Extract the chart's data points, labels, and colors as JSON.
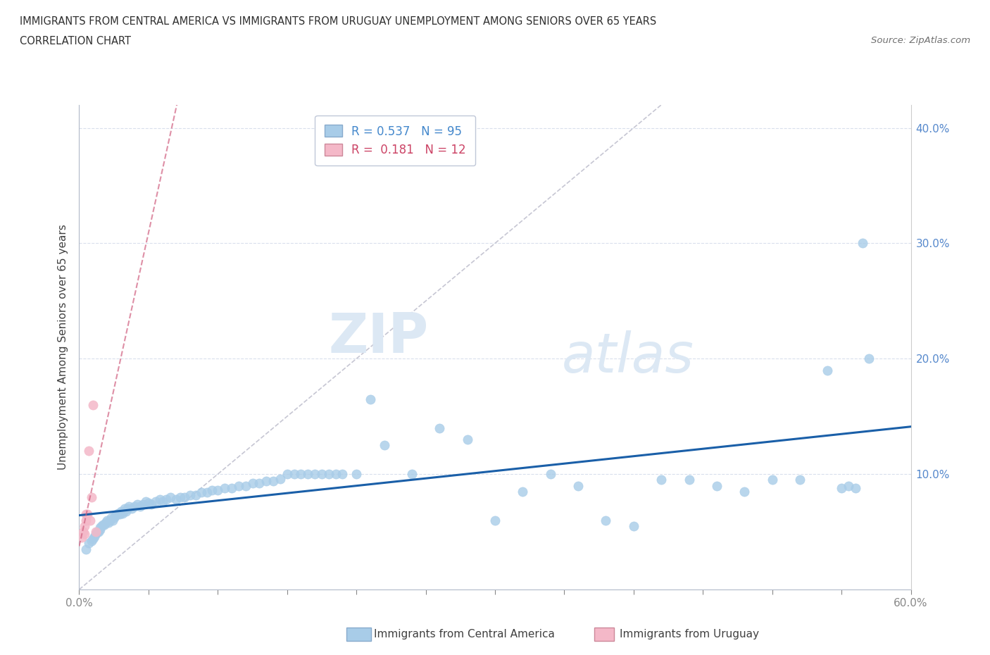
{
  "title_line1": "IMMIGRANTS FROM CENTRAL AMERICA VS IMMIGRANTS FROM URUGUAY UNEMPLOYMENT AMONG SENIORS OVER 65 YEARS",
  "title_line2": "CORRELATION CHART",
  "source": "Source: ZipAtlas.com",
  "ylabel": "Unemployment Among Seniors over 65 years",
  "xlabel_blue": "Immigrants from Central America",
  "xlabel_pink": "Immigrants from Uruguay",
  "R_blue": 0.537,
  "N_blue": 95,
  "R_pink": 0.181,
  "N_pink": 12,
  "xlim": [
    0.0,
    0.6
  ],
  "ylim": [
    0.0,
    0.42
  ],
  "xticks": [
    0.0,
    0.05,
    0.1,
    0.15,
    0.2,
    0.25,
    0.3,
    0.35,
    0.4,
    0.45,
    0.5,
    0.55,
    0.6
  ],
  "xtick_labels": [
    "0.0%",
    "",
    "",
    "",
    "",
    "",
    "",
    "",
    "",
    "",
    "",
    "",
    "60.0%"
  ],
  "yticks": [
    0.1,
    0.2,
    0.3,
    0.4
  ],
  "ytick_labels": [
    "10.0%",
    "20.0%",
    "30.0%",
    "40.0%"
  ],
  "blue_color": "#a8cce8",
  "blue_line_color": "#1a5fa8",
  "pink_color": "#f4b8c8",
  "pink_line_color": "#d06080",
  "watermark_zip": "ZIP",
  "watermark_atlas": "atlas",
  "blue_x": [
    0.005,
    0.007,
    0.009,
    0.01,
    0.011,
    0.012,
    0.013,
    0.014,
    0.015,
    0.015,
    0.016,
    0.017,
    0.018,
    0.019,
    0.02,
    0.021,
    0.022,
    0.023,
    0.024,
    0.025,
    0.026,
    0.027,
    0.028,
    0.029,
    0.03,
    0.031,
    0.032,
    0.033,
    0.034,
    0.035,
    0.036,
    0.038,
    0.04,
    0.042,
    0.044,
    0.046,
    0.048,
    0.05,
    0.052,
    0.055,
    0.058,
    0.06,
    0.063,
    0.066,
    0.07,
    0.073,
    0.076,
    0.08,
    0.084,
    0.088,
    0.092,
    0.096,
    0.1,
    0.105,
    0.11,
    0.115,
    0.12,
    0.125,
    0.13,
    0.135,
    0.14,
    0.145,
    0.15,
    0.155,
    0.16,
    0.165,
    0.17,
    0.175,
    0.18,
    0.185,
    0.19,
    0.2,
    0.21,
    0.22,
    0.24,
    0.26,
    0.28,
    0.3,
    0.32,
    0.34,
    0.36,
    0.38,
    0.4,
    0.42,
    0.44,
    0.46,
    0.48,
    0.5,
    0.52,
    0.54,
    0.55,
    0.555,
    0.56,
    0.565,
    0.57
  ],
  "blue_y": [
    0.035,
    0.04,
    0.042,
    0.044,
    0.046,
    0.048,
    0.05,
    0.05,
    0.052,
    0.054,
    0.055,
    0.056,
    0.056,
    0.058,
    0.06,
    0.058,
    0.06,
    0.062,
    0.06,
    0.062,
    0.064,
    0.065,
    0.066,
    0.065,
    0.068,
    0.066,
    0.068,
    0.07,
    0.068,
    0.07,
    0.072,
    0.07,
    0.072,
    0.074,
    0.072,
    0.074,
    0.076,
    0.075,
    0.074,
    0.076,
    0.078,
    0.076,
    0.078,
    0.08,
    0.078,
    0.08,
    0.08,
    0.082,
    0.082,
    0.084,
    0.084,
    0.086,
    0.086,
    0.088,
    0.088,
    0.09,
    0.09,
    0.092,
    0.092,
    0.094,
    0.094,
    0.096,
    0.1,
    0.1,
    0.1,
    0.1,
    0.1,
    0.1,
    0.1,
    0.1,
    0.1,
    0.1,
    0.165,
    0.125,
    0.1,
    0.14,
    0.13,
    0.06,
    0.085,
    0.1,
    0.09,
    0.06,
    0.055,
    0.095,
    0.095,
    0.09,
    0.085,
    0.095,
    0.095,
    0.19,
    0.088,
    0.09,
    0.088,
    0.3,
    0.2
  ],
  "pink_x": [
    0.002,
    0.003,
    0.004,
    0.004,
    0.005,
    0.005,
    0.006,
    0.007,
    0.008,
    0.009,
    0.01,
    0.012
  ],
  "pink_y": [
    0.045,
    0.05,
    0.048,
    0.055,
    0.06,
    0.065,
    0.065,
    0.12,
    0.06,
    0.08,
    0.16,
    0.05
  ]
}
